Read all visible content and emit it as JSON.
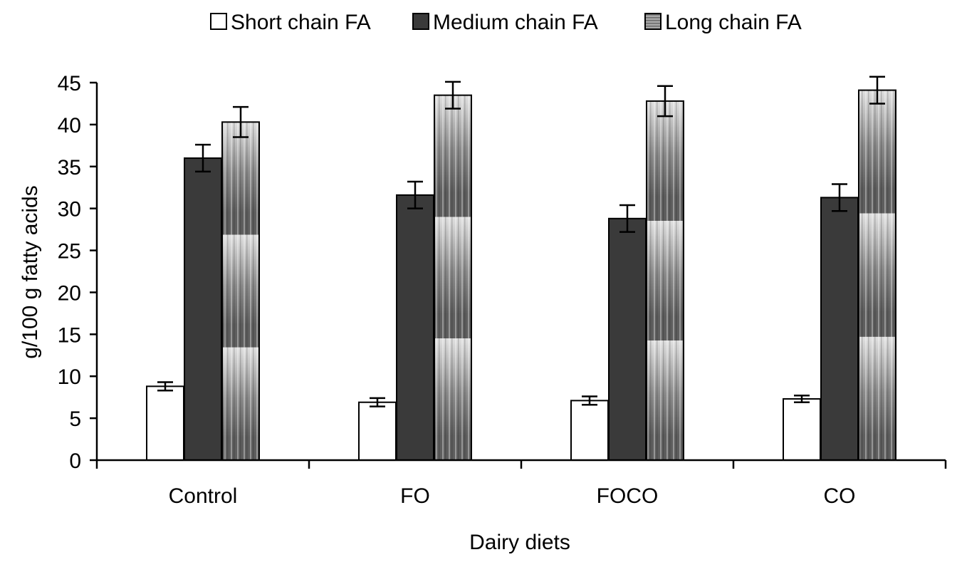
{
  "chart_data": {
    "type": "bar",
    "title": "",
    "xlabel": "Dairy diets",
    "ylabel": "g/100 g fatty acids",
    "categories": [
      "Control",
      "FO",
      "FOCO",
      "CO"
    ],
    "ylim": [
      0,
      45
    ],
    "yticks": [
      0,
      5,
      10,
      15,
      20,
      25,
      30,
      35,
      40,
      45
    ],
    "grid": false,
    "legend_position": "top",
    "series": [
      {
        "name": "Short chain FA",
        "values": [
          8.8,
          6.9,
          7.1,
          7.3
        ],
        "errors": [
          0.5,
          0.5,
          0.5,
          0.4
        ],
        "color": "#ffffff",
        "pattern": "none"
      },
      {
        "name": "Medium chain FA",
        "values": [
          36.0,
          31.6,
          28.8,
          31.3
        ],
        "errors": [
          1.6,
          1.6,
          1.6,
          1.6
        ],
        "color": "#3a3a3a",
        "pattern": "solid"
      },
      {
        "name": "Long chain FA",
        "values": [
          40.3,
          43.5,
          42.8,
          44.1
        ],
        "errors": [
          1.8,
          1.6,
          1.8,
          1.6
        ],
        "color": "#9a9a9a",
        "pattern": "gradient-stripes"
      }
    ]
  }
}
